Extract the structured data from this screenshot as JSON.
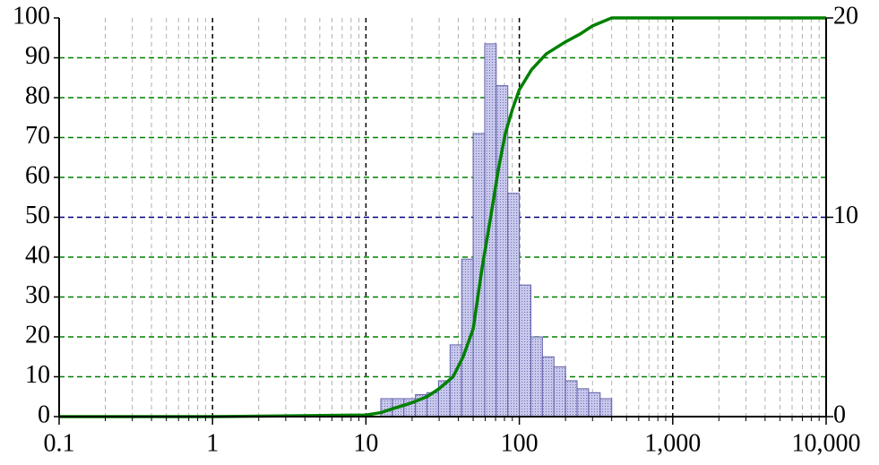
{
  "chart_data": {
    "type": "histogram",
    "xlim": [
      0.1,
      10000
    ],
    "log_x": true,
    "xticks": [
      0.1,
      1,
      10,
      100,
      {
        "value": 1000,
        "label": "1,000"
      },
      {
        "value": 10000,
        "label": "10,000"
      }
    ],
    "ylim": [
      0,
      100
    ],
    "yticks": [
      0,
      10,
      20,
      30,
      40,
      50,
      60,
      70,
      80,
      90,
      100
    ],
    "y2lim": [
      0,
      20
    ],
    "y2ticks": [
      0,
      10,
      20
    ],
    "grid": true,
    "series": [
      {
        "type": "histogram",
        "axis": "y2",
        "color": "#b4b4e0",
        "edge_color": "#6060a8",
        "bins": [
          12.5,
          14.87,
          17.68,
          21.02,
          25.0,
          29.73,
          35.36,
          42.04,
          50.0,
          59.46,
          70.71,
          84.09,
          100,
          118.9,
          141.4,
          168.2,
          200,
          237.8,
          282.8,
          336.4,
          400
        ],
        "values": [
          0.9,
          0.9,
          0.9,
          1.1,
          1.2,
          1.8,
          3.6,
          7.9,
          14.2,
          18.7,
          16.6,
          11.2,
          6.6,
          4.0,
          3.0,
          2.5,
          1.8,
          1.4,
          1.2,
          0.9
        ]
      },
      {
        "type": "line",
        "axis": "y",
        "color": "#008000",
        "x": [
          0.1,
          1,
          10,
          12.5,
          15,
          20,
          25,
          30,
          37,
          43,
          50,
          57,
          65,
          73,
          81,
          90,
          100,
          120,
          150,
          200,
          250,
          300,
          400,
          10000
        ],
        "values": [
          0,
          0,
          0.4,
          1,
          2,
          3.5,
          5,
          7,
          10,
          15,
          22,
          37,
          50,
          62,
          71,
          77,
          82,
          87,
          91,
          94,
          96,
          98,
          100,
          100
        ]
      }
    ]
  }
}
